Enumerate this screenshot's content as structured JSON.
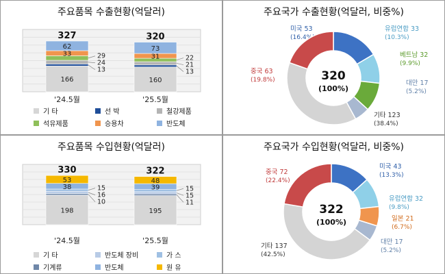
{
  "chart_data": [
    {
      "type": "bar",
      "stacked": true,
      "title": "주요품목 수출현황(억달러)",
      "categories": [
        "'24.5월",
        "'25.5월"
      ],
      "totals": [
        327,
        320
      ],
      "series": [
        {
          "name": "기 타",
          "color": "#d6d6d6",
          "values": [
            166,
            160
          ]
        },
        {
          "name": "선 박",
          "color": "#1f4e99",
          "values": [
            13,
            13
          ]
        },
        {
          "name": "철강제품",
          "color": "#b4b4b4",
          "values": [
            24,
            21
          ]
        },
        {
          "name": "석유제품",
          "color": "#8fbf5a",
          "values": [
            29,
            22
          ]
        },
        {
          "name": "승용차",
          "color": "#f0954e",
          "values": [
            33,
            31
          ]
        },
        {
          "name": "반도체",
          "color": "#8fb3e0",
          "values": [
            62,
            73
          ]
        }
      ],
      "side_labels_left": [
        "29",
        "24",
        "13"
      ],
      "side_labels_right": [
        "22",
        "21",
        "13"
      ],
      "legend_order": [
        "기 타",
        "선 박",
        "철강제품",
        "석유제품",
        "승용차",
        "반도체"
      ],
      "legend": [
        {
          "label": "기 타",
          "color": "#d6d6d6"
        },
        {
          "label": "선 박",
          "color": "#1f4e99"
        },
        {
          "label": "철강제품",
          "color": "#b4b4b4"
        },
        {
          "label": "석유제품",
          "color": "#8fbf5a"
        },
        {
          "label": "승용차",
          "color": "#f0954e"
        },
        {
          "label": "반도체",
          "color": "#8fb3e0"
        }
      ],
      "ylim": [
        0,
        340
      ]
    },
    {
      "type": "pie",
      "donut": true,
      "title": "주요국가 수출현황(억달러, 비중%)",
      "center_value": "320",
      "center_pct": "(100%)",
      "slices": [
        {
          "name": "미국",
          "value": 53,
          "pct": "(16.4%)",
          "color": "#3d72c4",
          "label_color": "#2f5fa8"
        },
        {
          "name": "유럽연합",
          "value": 33,
          "pct": "(10.3%)",
          "color": "#8fd0e8",
          "label_color": "#4a9cc4"
        },
        {
          "name": "베트남",
          "value": 32,
          "pct": "(9.9%)",
          "color": "#6aaa3a",
          "label_color": "#5a9a2a"
        },
        {
          "name": "대만",
          "value": 17,
          "pct": "(5.2%)",
          "color": "#a8b8d0",
          "label_color": "#6080a8"
        },
        {
          "name": "기타",
          "value": 123,
          "pct": "(38.4%)",
          "color": "#d4d4d4",
          "label_color": "#333333"
        },
        {
          "name": "중국",
          "value": 63,
          "pct": "(19.8%)",
          "color": "#c84a4a",
          "label_color": "#c03a3a"
        }
      ]
    },
    {
      "type": "bar",
      "stacked": true,
      "title": "주요품목 수입현황(억달러)",
      "categories": [
        "'24.5월",
        "'25.5월"
      ],
      "totals": [
        330,
        322
      ],
      "series": [
        {
          "name": "기 타",
          "color": "#d6d6d6",
          "values": [
            198,
            195
          ]
        },
        {
          "name": "기계류",
          "color": "#6f87a8",
          "values": [
            10,
            11
          ]
        },
        {
          "name": "반도체 장비",
          "color": "#b8cbe6",
          "values": [
            16,
            15
          ]
        },
        {
          "name": "가 스",
          "color": "#9fc0e3",
          "values": [
            15,
            15
          ]
        },
        {
          "name": "반도체",
          "color": "#8fb3e0",
          "values": [
            38,
            39
          ]
        },
        {
          "name": "원 유",
          "color": "#f5b800",
          "values": [
            53,
            48
          ]
        }
      ],
      "side_labels_left": [
        "15",
        "16",
        "10"
      ],
      "side_labels_right": [
        "15",
        "15",
        "11"
      ],
      "legend": [
        {
          "label": "기 타",
          "color": "#d6d6d6"
        },
        {
          "label": "반도체 장비",
          "color": "#b8cbe6"
        },
        {
          "label": "가 스",
          "color": "#9fc0e3"
        },
        {
          "label": "기계류",
          "color": "#6f87a8"
        },
        {
          "label": "반도체",
          "color": "#8fb3e0"
        },
        {
          "label": "원 유",
          "color": "#f5b800"
        }
      ],
      "ylim": [
        0,
        340
      ]
    },
    {
      "type": "pie",
      "donut": true,
      "title": "주요국가 수입현황(억달러, 비중%)",
      "center_value": "322",
      "center_pct": "(100%)",
      "slices": [
        {
          "name": "미국",
          "value": 43,
          "pct": "(13.3%)",
          "color": "#3d72c4",
          "label_color": "#2f5fa8"
        },
        {
          "name": "유럽연합",
          "value": 32,
          "pct": "(9.8%)",
          "color": "#8fd0e8",
          "label_color": "#4a9cc4"
        },
        {
          "name": "일본",
          "value": 21,
          "pct": "(6.7%)",
          "color": "#f0954e",
          "label_color": "#d06a1a"
        },
        {
          "name": "대만",
          "value": 17,
          "pct": "(5.2%)",
          "color": "#a8b8d0",
          "label_color": "#6080a8"
        },
        {
          "name": "기타",
          "value": 137,
          "pct": "(42.5%)",
          "color": "#d4d4d4",
          "label_color": "#333333"
        },
        {
          "name": "중국",
          "value": 72,
          "pct": "(22.4%)",
          "color": "#c84a4a",
          "label_color": "#c03a3a"
        }
      ]
    }
  ]
}
